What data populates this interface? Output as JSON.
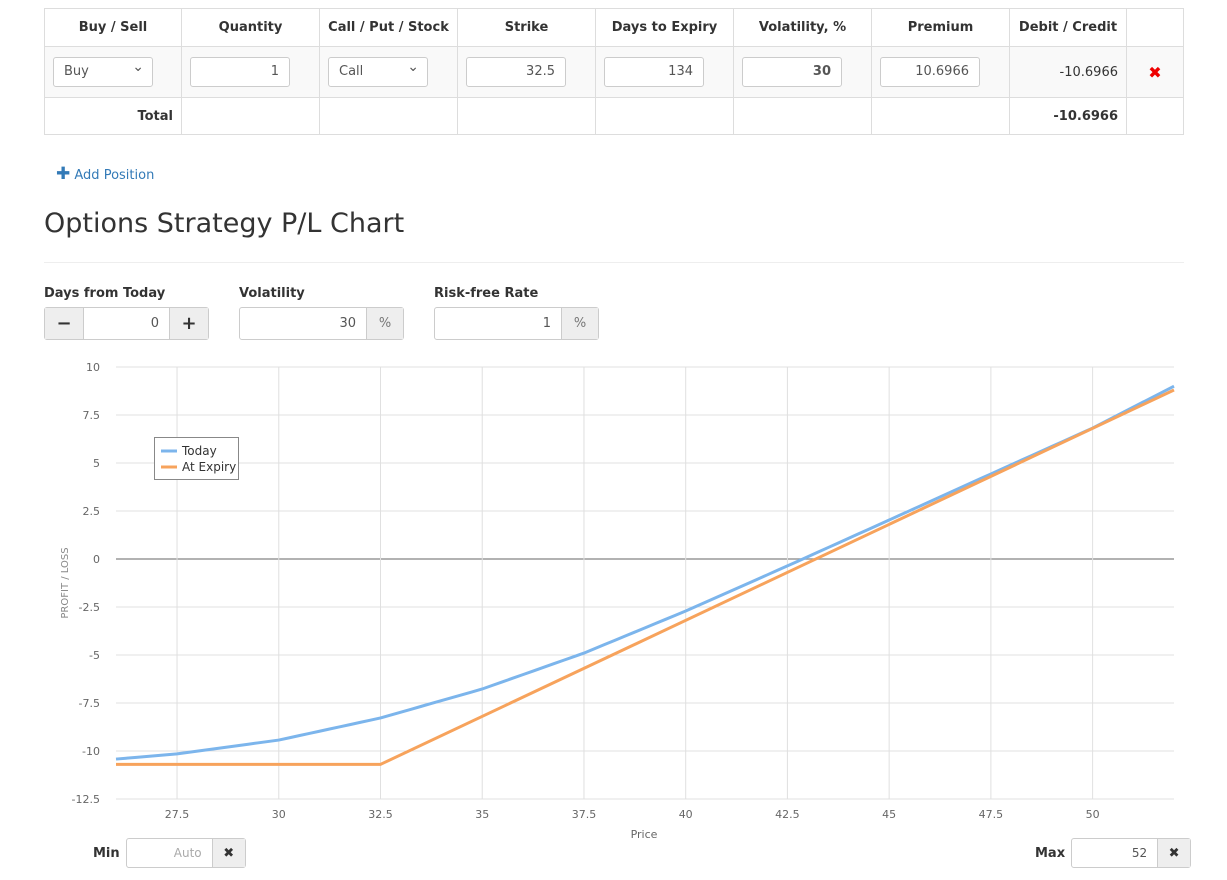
{
  "table": {
    "headers": [
      "Buy / Sell",
      "Quantity",
      "Call / Put / Stock",
      "Strike",
      "Days to Expiry",
      "Volatility, %",
      "Premium",
      "Debit / Credit",
      ""
    ],
    "position": {
      "side": "Buy",
      "quantity": "1",
      "type": "Call",
      "strike": "32.5",
      "days": "134",
      "volatility": "30",
      "premium": "10.6966",
      "debit_credit": "-10.6966"
    },
    "total_label": "Total",
    "total_value": "-10.6966"
  },
  "add_position": "Add Position",
  "title": "Options Strategy P/L Chart",
  "controls": {
    "days_label": "Days from Today",
    "days": "0",
    "vol_label": "Volatility",
    "vol": "30",
    "rate_label": "Risk-free Rate",
    "rate": "1",
    "pct": "%"
  },
  "range": {
    "min_label": "Min",
    "min_placeholder": "Auto",
    "max_label": "Max",
    "max": "52"
  },
  "colors": {
    "today": "#7cb5ec",
    "expiry": "#f7a35c"
  },
  "chart_data": {
    "type": "line",
    "xlabel": "Price",
    "ylabel": "PROFIT / LOSS",
    "xlim": [
      26,
      52
    ],
    "ylim": [
      -12.5,
      10
    ],
    "xticks": [
      27.5,
      30,
      32.5,
      35,
      37.5,
      40,
      42.5,
      45,
      47.5,
      50
    ],
    "yticks": [
      10,
      7.5,
      5,
      2.5,
      0,
      -2.5,
      -5,
      -7.5,
      -10,
      -12.5
    ],
    "legend": "top-left",
    "series": [
      {
        "name": "Today",
        "x": [
          26,
          27.5,
          30,
          32.5,
          35,
          37.5,
          40,
          42.5,
          45,
          47.5,
          50,
          52
        ],
        "y": [
          -10.42,
          -10.15,
          -9.43,
          -8.28,
          -6.77,
          -4.9,
          -2.71,
          -0.36,
          2.03,
          4.43,
          6.82,
          9.0
        ]
      },
      {
        "name": "At Expiry",
        "x": [
          26,
          32.5,
          52
        ],
        "y": [
          -10.6966,
          -10.6966,
          8.8034
        ]
      }
    ]
  }
}
